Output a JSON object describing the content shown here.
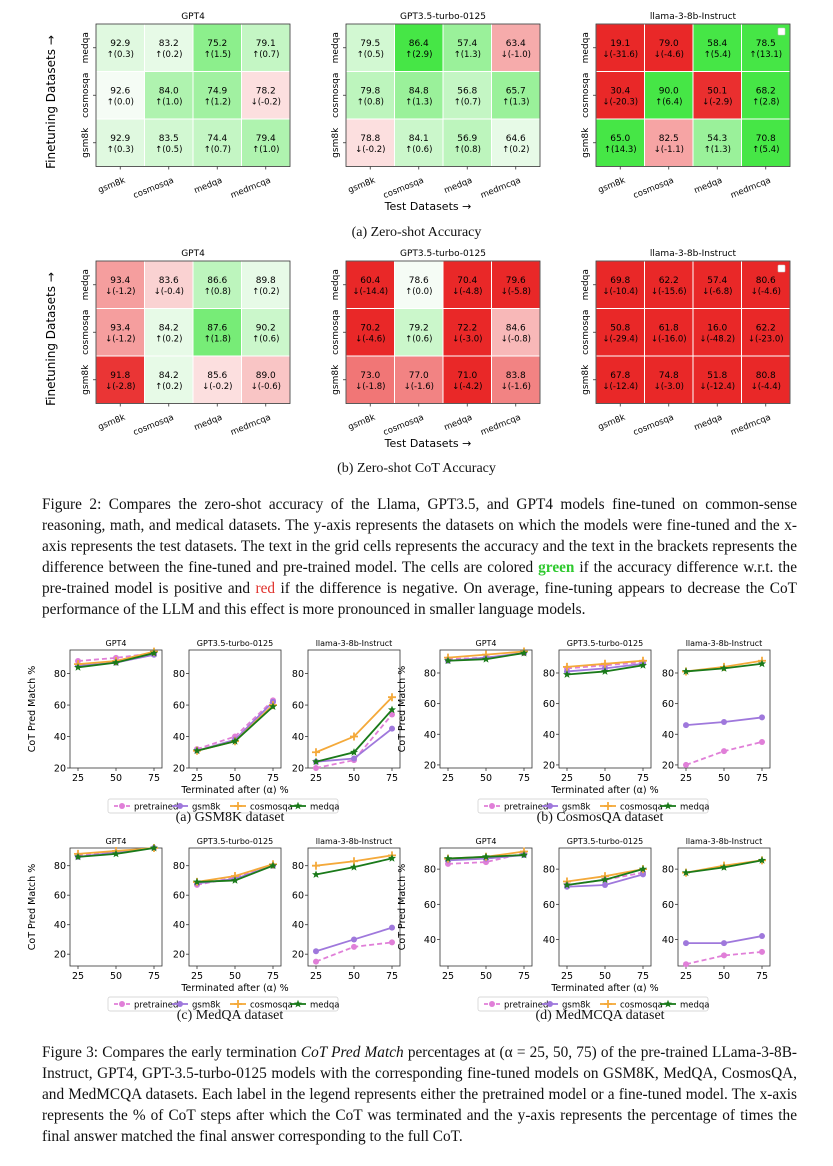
{
  "heatmap_shared": {
    "finetune_label": "Finetuning Datasets",
    "test_label": "Test Datasets",
    "arrow_right": "→",
    "arrow_up": "→",
    "rows": [
      "medqa",
      "cosmosqa",
      "gsm8k"
    ],
    "cols": [
      "gsm8k",
      "cosmosqa",
      "medqa",
      "medmcqa"
    ]
  },
  "heatmap_a": {
    "caption": "(a) Zero-shot Accuracy",
    "panels": [
      {
        "title": "GPT4",
        "cells": [
          [
            [
              "92.9",
              "↑(0.3)",
              0.3
            ],
            [
              "83.2",
              "↑(0.2)",
              0.2
            ],
            [
              "75.2",
              "↑(1.5)",
              1.5
            ],
            [
              "79.1",
              "↑(0.7)",
              0.7
            ]
          ],
          [
            [
              "92.6",
              "↑(0.0)",
              0.0
            ],
            [
              "84.0",
              "↑(1.0)",
              1.0
            ],
            [
              "74.9",
              "↑(1.2)",
              1.2
            ],
            [
              "78.2",
              "↓(-0.2)",
              -0.2
            ]
          ],
          [
            [
              "92.9",
              "↑(0.3)",
              0.3
            ],
            [
              "83.5",
              "↑(0.5)",
              0.5
            ],
            [
              "74.4",
              "↑(0.7)",
              0.7
            ],
            [
              "79.4",
              "↑(1.0)",
              1.0
            ]
          ]
        ]
      },
      {
        "title": "GPT3.5-turbo-0125",
        "cells": [
          [
            [
              "79.5",
              "↑(0.5)",
              0.5
            ],
            [
              "86.4",
              "↑(2.9)",
              2.9
            ],
            [
              "57.4",
              "↑(1.3)",
              1.3
            ],
            [
              "63.4",
              "↓(-1.0)",
              -1.0
            ]
          ],
          [
            [
              "79.8",
              "↑(0.8)",
              0.8
            ],
            [
              "84.8",
              "↑(1.3)",
              1.3
            ],
            [
              "56.8",
              "↑(0.7)",
              0.7
            ],
            [
              "65.7",
              "↑(1.3)",
              1.3
            ]
          ],
          [
            [
              "78.8",
              "↓(-0.2)",
              -0.2
            ],
            [
              "84.1",
              "↑(0.6)",
              0.6
            ],
            [
              "56.9",
              "↑(0.8)",
              0.8
            ],
            [
              "64.6",
              "↑(0.2)",
              0.2
            ]
          ]
        ]
      },
      {
        "title": "llama-3-8b-Instruct",
        "cells": [
          [
            [
              "19.1",
              "↓(-31.6)",
              -31.6
            ],
            [
              "79.0",
              "↓(-4.6)",
              -4.6
            ],
            [
              "58.4",
              "↑(5.4)",
              5.4
            ],
            [
              "78.5",
              "↑(13.1)",
              13.1
            ]
          ],
          [
            [
              "30.4",
              "↓(-20.3)",
              -20.3
            ],
            [
              "90.0",
              "↑(6.4)",
              6.4
            ],
            [
              "50.1",
              "↓(-2.9)",
              -2.9
            ],
            [
              "68.2",
              "↑(2.8)",
              2.8
            ]
          ],
          [
            [
              "65.0",
              "↑(14.3)",
              14.3
            ],
            [
              "82.5",
              "↓(-1.1)",
              -1.1
            ],
            [
              "54.3",
              "↑(1.3)",
              1.3
            ],
            [
              "70.8",
              "↑(5.4)",
              5.4
            ]
          ]
        ]
      }
    ]
  },
  "heatmap_b": {
    "caption": "(b) Zero-shot CoT Accuracy",
    "panels": [
      {
        "title": "GPT4",
        "cells": [
          [
            [
              "93.4",
              "↓(-1.2)",
              -1.2
            ],
            [
              "83.6",
              "↓(-0.4)",
              -0.4
            ],
            [
              "86.6",
              "↑(0.8)",
              0.8
            ],
            [
              "89.8",
              "↑(0.2)",
              0.2
            ]
          ],
          [
            [
              "93.4",
              "↓(-1.2)",
              -1.2
            ],
            [
              "84.2",
              "↑(0.2)",
              0.2
            ],
            [
              "87.6",
              "↑(1.8)",
              1.8
            ],
            [
              "90.2",
              "↑(0.6)",
              0.6
            ]
          ],
          [
            [
              "91.8",
              "↓(-2.8)",
              -2.8
            ],
            [
              "84.2",
              "↑(0.2)",
              0.2
            ],
            [
              "85.6",
              "↓(-0.2)",
              -0.2
            ],
            [
              "89.0",
              "↓(-0.6)",
              -0.6
            ]
          ]
        ]
      },
      {
        "title": "GPT3.5-turbo-0125",
        "cells": [
          [
            [
              "60.4",
              "↓(-14.4)",
              -14.4
            ],
            [
              "78.6",
              "↑(0.0)",
              0.0
            ],
            [
              "70.4",
              "↓(-4.8)",
              -4.8
            ],
            [
              "79.6",
              "↓(-5.8)",
              -5.8
            ]
          ],
          [
            [
              "70.2",
              "↓(-4.6)",
              -4.6
            ],
            [
              "79.2",
              "↑(0.6)",
              0.6
            ],
            [
              "72.2",
              "↓(-3.0)",
              -3.0
            ],
            [
              "84.6",
              "↓(-0.8)",
              -0.8
            ]
          ],
          [
            [
              "73.0",
              "↓(-1.8)",
              -1.8
            ],
            [
              "77.0",
              "↓(-1.6)",
              -1.6
            ],
            [
              "71.0",
              "↓(-4.2)",
              -4.2
            ],
            [
              "83.8",
              "↓(-1.6)",
              -1.6
            ]
          ]
        ]
      },
      {
        "title": "llama-3-8b-Instruct",
        "cells": [
          [
            [
              "69.8",
              "↓(-10.4)",
              -10.4
            ],
            [
              "62.2",
              "↓(-15.6)",
              -15.6
            ],
            [
              "57.4",
              "↓(-6.8)",
              -6.8
            ],
            [
              "80.6",
              "↓(-4.6)",
              -4.6
            ]
          ],
          [
            [
              "50.8",
              "↓(-29.4)",
              -29.4
            ],
            [
              "61.8",
              "↓(-16.0)",
              -16.0
            ],
            [
              "16.0",
              "↓(-48.2)",
              -48.2
            ],
            [
              "62.2",
              "↓(-23.0)",
              -23.0
            ]
          ],
          [
            [
              "67.8",
              "↓(-12.4)",
              -12.4
            ],
            [
              "74.8",
              "↓(-3.0)",
              -3.0
            ],
            [
              "51.8",
              "↓(-12.4)",
              -12.4
            ],
            [
              "80.8",
              "↓(-4.4)",
              -4.4
            ]
          ]
        ]
      }
    ]
  },
  "figure2_caption": {
    "p1": "Figure 2: Compares the zero-shot accuracy of the Llama, GPT3.5, and GPT4 models fine-tuned on common-sense reasoning, math, and medical datasets. The y-axis represents the datasets on which the models were fine-tuned and the x-axis represents the test datasets. The text in the grid cells represents the accuracy and the text in the brackets represents the difference between the fine-tuned and pre-trained model. The cells are colored",
    "green_word": "green",
    "p2": "if the accuracy difference w.r.t. the pre-trained model is positive and",
    "red_word": "red",
    "p3": "if the difference is negative. On average, fine-tuning appears to decrease the CoT performance of the LLM and this effect is more pronounced in smaller language models."
  },
  "line_shared": {
    "ylabel": "CoT Pred Match %",
    "xlabel": "Terminated after (α) %",
    "x": [
      25,
      50,
      75
    ],
    "legend": [
      "pretrained",
      "gsm8k",
      "cosmosqa",
      "medqa"
    ],
    "colors": {
      "pretrained": "#e07fd8",
      "gsm8k": "#9f78dc",
      "cosmosqa": "#f4a93a",
      "medqa": "#1a7a1a"
    },
    "panel_titles": [
      "GPT4",
      "GPT3.5-turbo-0125",
      "llama-3-8b-Instruct"
    ]
  },
  "chart_data": [
    {
      "type": "line",
      "caption": "(a) GSM8K dataset",
      "ylim": [
        20,
        95
      ],
      "yticks": [
        20,
        40,
        60,
        80
      ],
      "panels": [
        {
          "pretrained": [
            88,
            90,
            93
          ],
          "gsm8k": [
            85,
            87,
            92
          ],
          "cosmosqa": [
            86,
            88,
            94
          ],
          "medqa": [
            84,
            87,
            93
          ]
        },
        {
          "pretrained": [
            32,
            40,
            63
          ],
          "gsm8k": [
            31,
            38,
            62
          ],
          "cosmosqa": [
            31,
            37,
            60
          ],
          "medqa": [
            31,
            37,
            59
          ]
        },
        {
          "pretrained": [
            20,
            25,
            54
          ],
          "gsm8k": [
            24,
            26,
            45
          ],
          "cosmosqa": [
            30,
            40,
            65
          ],
          "medqa": [
            24,
            30,
            57
          ]
        }
      ]
    },
    {
      "type": "line",
      "caption": "(b) CosmosQA dataset",
      "ylim": [
        18,
        95
      ],
      "yticks": [
        20,
        40,
        60,
        80
      ],
      "panels": [
        {
          "pretrained": [
            89,
            90,
            93
          ],
          "gsm8k": [
            88,
            90,
            93
          ],
          "cosmosqa": [
            90,
            92,
            94
          ],
          "medqa": [
            88,
            89,
            93
          ]
        },
        {
          "pretrained": [
            83,
            85,
            87
          ],
          "gsm8k": [
            81,
            83,
            86
          ],
          "cosmosqa": [
            84,
            86,
            88
          ],
          "medqa": [
            79,
            81,
            85
          ]
        },
        {
          "pretrained": [
            20,
            29,
            35
          ],
          "gsm8k": [
            46,
            48,
            51
          ],
          "cosmosqa": [
            81,
            84,
            88
          ],
          "medqa": [
            81,
            83,
            86
          ]
        }
      ]
    },
    {
      "type": "line",
      "caption": "(c) MedQA dataset",
      "ylim": [
        12,
        92
      ],
      "yticks": [
        20,
        40,
        60,
        80
      ],
      "panels": [
        {
          "pretrained": [
            87,
            89,
            92
          ],
          "gsm8k": [
            86,
            89,
            92
          ],
          "cosmosqa": [
            88,
            90,
            92
          ],
          "medqa": [
            86,
            88,
            92
          ]
        },
        {
          "pretrained": [
            67,
            72,
            80
          ],
          "gsm8k": [
            68,
            71,
            80
          ],
          "cosmosqa": [
            69,
            73,
            81
          ],
          "medqa": [
            69,
            70,
            80
          ]
        },
        {
          "pretrained": [
            15,
            25,
            28
          ],
          "gsm8k": [
            22,
            30,
            38
          ],
          "cosmosqa": [
            80,
            83,
            87
          ],
          "medqa": [
            74,
            79,
            85
          ]
        }
      ]
    },
    {
      "type": "line",
      "caption": "(d) MedMCQA dataset",
      "ylim": [
        25,
        92
      ],
      "yticks": [
        40,
        60,
        80
      ],
      "panels": [
        {
          "pretrained": [
            83,
            84,
            89
          ],
          "gsm8k": [
            85,
            86,
            88
          ],
          "cosmosqa": [
            86,
            87,
            90
          ],
          "medqa": [
            86,
            87,
            88
          ]
        },
        {
          "pretrained": [
            71,
            74,
            78
          ],
          "gsm8k": [
            70,
            71,
            77
          ],
          "cosmosqa": [
            73,
            76,
            80
          ],
          "medqa": [
            71,
            74,
            80
          ]
        },
        {
          "pretrained": [
            26,
            31,
            33
          ],
          "gsm8k": [
            38,
            38,
            42
          ],
          "cosmosqa": [
            78,
            82,
            85
          ],
          "medqa": [
            78,
            81,
            85
          ]
        }
      ]
    }
  ],
  "figure3_caption": {
    "p1": "Figure 3: Compares the early termination",
    "em": "CoT Pred Match",
    "p2": "percentages at (α = 25, 50, 75) of the pre-trained LLama-3-8B-Instruct, GPT4, GPT-3.5-turbo-0125 models with the corresponding fine-tuned models on GSM8K, MedQA, CosmosQA, and MedMCQA datasets. Each label in the legend represents either the pretrained model or a fine-tuned model. The x-axis represents the % of CoT steps after which the CoT was terminated and the y-axis represents the percentage of times the final answer matched the final answer corresponding to the full CoT."
  }
}
